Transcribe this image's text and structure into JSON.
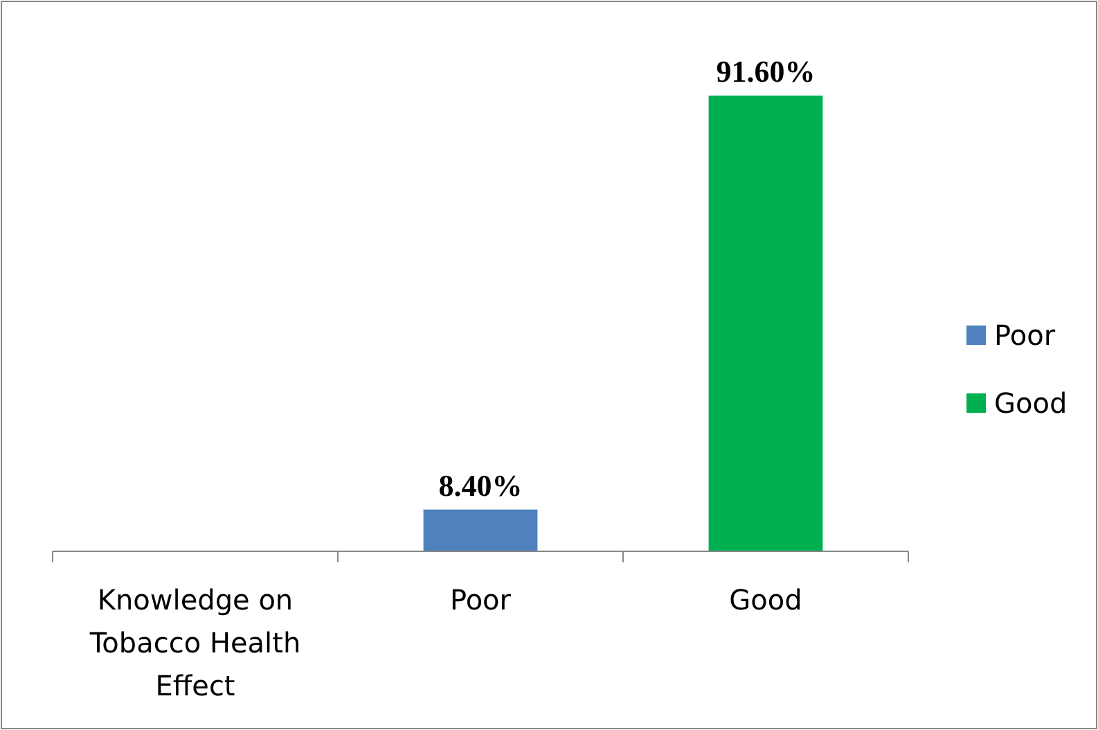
{
  "chart_data": {
    "type": "bar",
    "categories": [
      "Knowledge on Tobacco Health Effect",
      "Poor",
      "Good"
    ],
    "series": [
      {
        "name": "Poor",
        "color": "#4f81bd",
        "values": [
          null,
          8.4,
          null
        ],
        "value_labels": [
          null,
          "8.40%",
          null
        ]
      },
      {
        "name": "Good",
        "color": "#00b050",
        "values": [
          null,
          null,
          91.6
        ],
        "value_labels": [
          null,
          null,
          "91.60%"
        ]
      }
    ],
    "legend": "right"
  }
}
